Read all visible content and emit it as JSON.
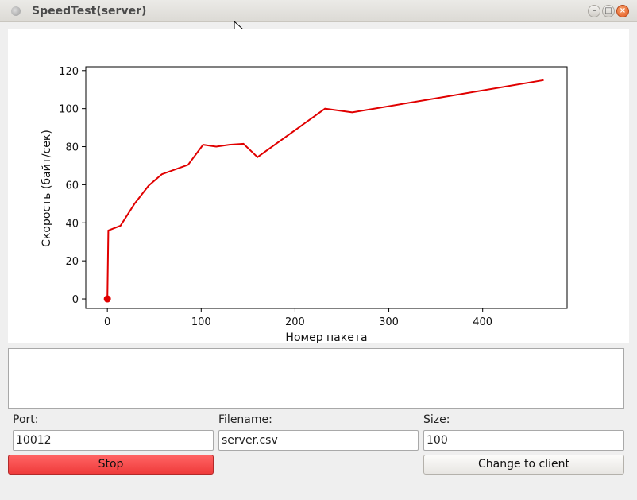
{
  "window": {
    "title": "SpeedTest(server)"
  },
  "chart_data": {
    "type": "line",
    "xlabel": "Номер пакета",
    "ylabel": "Скорость (байт/сек)",
    "xlim": [
      -23,
      490
    ],
    "ylim": [
      -5,
      122
    ],
    "xticks": [
      0,
      100,
      200,
      300,
      400
    ],
    "yticks": [
      0,
      20,
      40,
      60,
      80,
      100,
      120
    ],
    "grid": false,
    "line_color": "#e00000",
    "series": [
      {
        "points": [
          [
            0,
            0
          ],
          [
            1,
            36
          ],
          [
            14,
            38.5
          ],
          [
            29,
            50
          ],
          [
            44,
            59.5
          ],
          [
            58,
            65.5
          ],
          [
            86,
            70.5
          ],
          [
            102,
            81
          ],
          [
            116,
            80
          ],
          [
            130,
            81
          ],
          [
            145,
            81.5
          ],
          [
            160,
            74.5
          ],
          [
            232,
            100
          ],
          [
            247,
            99
          ],
          [
            261,
            98
          ],
          [
            465,
            115
          ]
        ],
        "marker_first": true
      }
    ]
  },
  "form": {
    "port_label": "Port:",
    "port_value": "10012",
    "filename_label": "Filename:",
    "filename_value": "server.csv",
    "size_label": "Size:",
    "size_value": "100"
  },
  "buttons": {
    "stop_label": "Stop",
    "change_label": "Change to client"
  },
  "colors": {
    "stop_button": "#f04040",
    "plot_line": "#e00000"
  }
}
